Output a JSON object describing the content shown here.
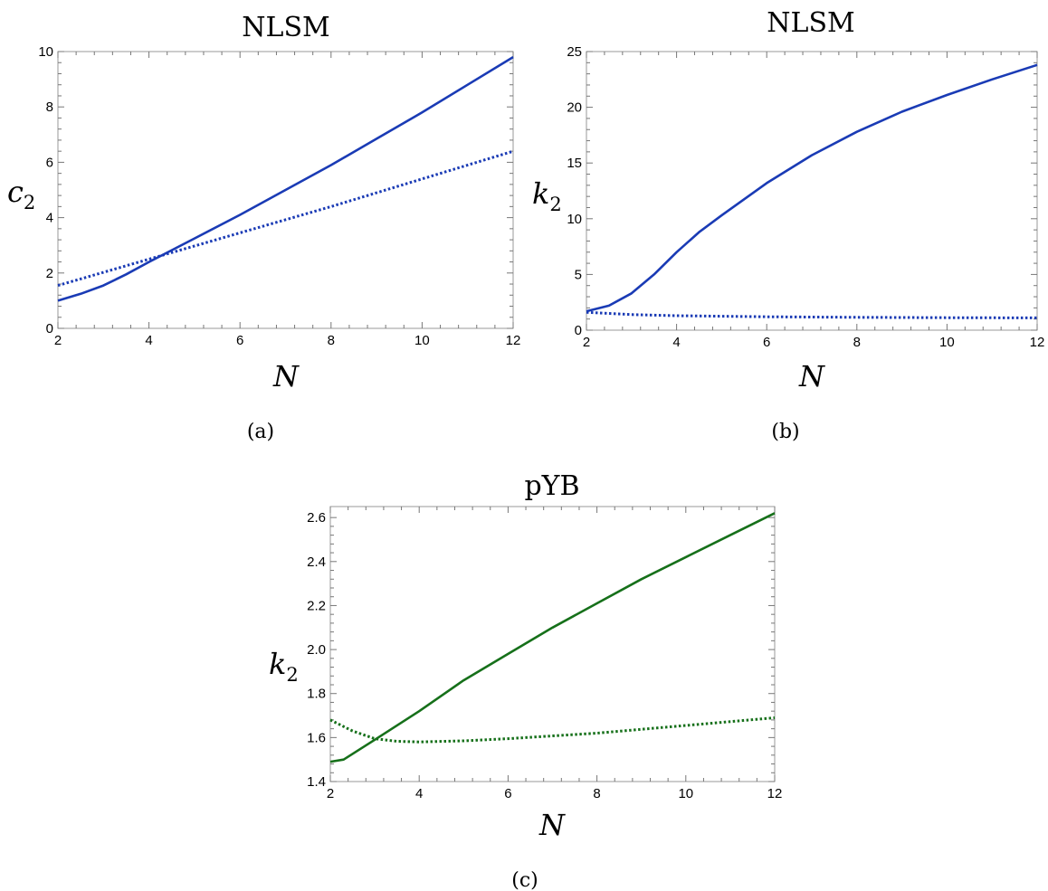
{
  "chart_data": [
    {
      "id": "a",
      "type": "line",
      "title": "NLSM",
      "xlabel": "N",
      "ylabel": "c",
      "ylabel_sub": "2",
      "caption": "(a)",
      "xlim": [
        2,
        12
      ],
      "ylim": [
        0,
        10
      ],
      "xticks": [
        2,
        4,
        6,
        8,
        10,
        12
      ],
      "yticks": [
        0,
        2,
        4,
        6,
        8,
        10
      ],
      "grid": false,
      "color": "#1a3bb5",
      "series": [
        {
          "style": "solid",
          "x": [
            2,
            2.5,
            3,
            3.5,
            4,
            5,
            6,
            7,
            8,
            9,
            10,
            11,
            12
          ],
          "y": [
            1.0,
            1.25,
            1.55,
            1.95,
            2.4,
            3.25,
            4.1,
            5.0,
            5.9,
            6.85,
            7.8,
            8.8,
            9.8
          ]
        },
        {
          "style": "dotted",
          "x": [
            2,
            4,
            6,
            8,
            10,
            12
          ],
          "y": [
            1.55,
            2.5,
            3.45,
            4.4,
            5.4,
            6.4
          ]
        }
      ]
    },
    {
      "id": "b",
      "type": "line",
      "title": "NLSM",
      "xlabel": "N",
      "ylabel": "k",
      "ylabel_sub": "2",
      "caption": "(b)",
      "xlim": [
        2,
        12
      ],
      "ylim": [
        0,
        25
      ],
      "xticks": [
        2,
        4,
        6,
        8,
        10,
        12
      ],
      "yticks": [
        0,
        5,
        10,
        15,
        20,
        25
      ],
      "grid": false,
      "color": "#1a3bb5",
      "series": [
        {
          "style": "solid",
          "x": [
            2,
            2.5,
            3,
            3.5,
            4,
            4.5,
            5,
            6,
            7,
            8,
            9,
            10,
            11,
            12
          ],
          "y": [
            1.7,
            2.2,
            3.3,
            5.0,
            7.0,
            8.8,
            10.3,
            13.2,
            15.7,
            17.8,
            19.6,
            21.1,
            22.5,
            23.8
          ]
        },
        {
          "style": "dotted",
          "x": [
            2,
            3,
            4,
            6,
            8,
            10,
            12
          ],
          "y": [
            1.6,
            1.4,
            1.3,
            1.2,
            1.15,
            1.12,
            1.1
          ]
        }
      ]
    },
    {
      "id": "c",
      "type": "line",
      "title": "pYB",
      "xlabel": "N",
      "ylabel": "k",
      "ylabel_sub": "2",
      "caption": "(c)",
      "xlim": [
        2,
        12
      ],
      "ylim": [
        1.4,
        2.65
      ],
      "xticks": [
        2,
        4,
        6,
        8,
        10,
        12
      ],
      "yticks": [
        1.4,
        1.6,
        1.8,
        2.0,
        2.2,
        2.4,
        2.6
      ],
      "ytick_labels": [
        "1.4",
        "1.6",
        "1.8",
        "2.0",
        "2.2",
        "2.4",
        "2.6"
      ],
      "grid": false,
      "color": "#16701a",
      "series": [
        {
          "style": "solid",
          "x": [
            2,
            2.3,
            3,
            4,
            5,
            6,
            7,
            8,
            9,
            10,
            11,
            12
          ],
          "y": [
            1.49,
            1.5,
            1.59,
            1.72,
            1.86,
            1.98,
            2.1,
            2.21,
            2.32,
            2.42,
            2.52,
            2.62
          ]
        },
        {
          "style": "dotted",
          "x": [
            2,
            2.5,
            3,
            3.5,
            4,
            5,
            6,
            8,
            10,
            12
          ],
          "y": [
            1.68,
            1.63,
            1.595,
            1.583,
            1.58,
            1.585,
            1.595,
            1.62,
            1.655,
            1.69
          ]
        }
      ]
    }
  ]
}
